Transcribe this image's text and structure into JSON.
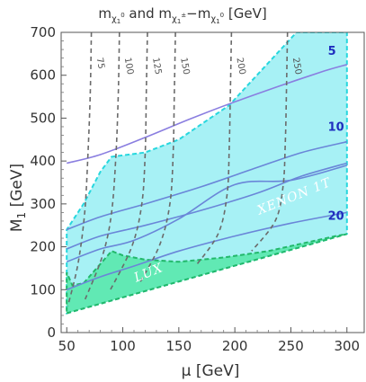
{
  "chart_data": {
    "type": "area",
    "title": "m_{χ1^0} and m_{χ1^±}−m_{χ1^0} [GeV]",
    "title_parts": {
      "m1": "m",
      "m1_sub": "χ",
      "m1_subsub": "0",
      "m1_subsub_low": "1",
      "and": " and ",
      "m2": "m",
      "m2_sub": "χ",
      "m2_subsup": "±",
      "m2_subsub": "1",
      "minus": "−",
      "m3": "m",
      "m3_sub": "χ",
      "m3_subsup": "0",
      "m3_subsub": "1",
      "unit": " [GeV]"
    },
    "xlabel": "μ [GeV]",
    "ylabel": "M₁ [GeV]",
    "ylabel_parts": {
      "main": "M",
      "sub": "1",
      "unit": " [GeV]"
    },
    "xlim": [
      45,
      305
    ],
    "ylim": [
      0,
      700
    ],
    "x_ticks": [
      50,
      100,
      150,
      200,
      250,
      300
    ],
    "y_ticks": [
      0,
      100,
      200,
      300,
      400,
      500,
      600,
      700
    ],
    "grid": false,
    "colors": {
      "xenon_fill": "#a7f1f5",
      "xenon_edge": "#27d7de",
      "lux_fill": "#55e8a8",
      "lux_edge": "#22b86a",
      "neutralino_contour": "#6b6b6b",
      "splitting_contour": "#6a86d8",
      "splitting_top": "#8a7ee0",
      "mass_label": "#1f2fbf"
    },
    "regions": [
      {
        "name": "XENON 1T",
        "boundary": [
          [
            50,
            45
          ],
          [
            300,
            230
          ],
          [
            300,
            700
          ],
          [
            255,
            700
          ],
          [
            195,
            530
          ],
          [
            150,
            450
          ],
          [
            120,
            420
          ],
          [
            90,
            410
          ],
          [
            80,
            375
          ],
          [
            65,
            300
          ],
          [
            50,
            240
          ]
        ]
      },
      {
        "name": "LUX",
        "boundary": [
          [
            50,
            45
          ],
          [
            300,
            230
          ],
          [
            290,
            225
          ],
          [
            230,
            190
          ],
          [
            190,
            175
          ],
          [
            150,
            165
          ],
          [
            120,
            170
          ],
          [
            100,
            180
          ],
          [
            90,
            190
          ],
          [
            80,
            160
          ],
          [
            65,
            115
          ],
          [
            55,
            110
          ],
          [
            50,
            140
          ]
        ]
      }
    ],
    "neutralino_mass_contours": [
      {
        "label": "75",
        "points": [
          [
            72,
            700
          ],
          [
            71,
            560
          ],
          [
            69,
            420
          ],
          [
            66,
            280
          ],
          [
            60,
            160
          ],
          [
            51,
            62
          ]
        ]
      },
      {
        "label": "100",
        "points": [
          [
            97,
            700
          ],
          [
            96,
            560
          ],
          [
            94,
            420
          ],
          [
            90,
            280
          ],
          [
            82,
            180
          ],
          [
            66,
            75
          ]
        ]
      },
      {
        "label": "125",
        "points": [
          [
            122,
            700
          ],
          [
            121,
            560
          ],
          [
            120,
            420
          ],
          [
            117,
            300
          ],
          [
            108,
            200
          ],
          [
            88,
            95
          ]
        ]
      },
      {
        "label": "150",
        "points": [
          [
            147,
            700
          ],
          [
            146,
            560
          ],
          [
            145,
            420
          ],
          [
            142,
            300
          ],
          [
            133,
            205
          ],
          [
            115,
            115
          ]
        ]
      },
      {
        "label": "200",
        "points": [
          [
            197,
            700
          ],
          [
            196,
            560
          ],
          [
            195,
            430
          ],
          [
            193,
            320
          ],
          [
            185,
            230
          ],
          [
            165,
            155
          ]
        ]
      },
      {
        "label": "250",
        "points": [
          [
            247,
            700
          ],
          [
            246,
            560
          ],
          [
            245,
            440
          ],
          [
            243,
            340
          ],
          [
            236,
            260
          ],
          [
            215,
            190
          ]
        ]
      }
    ],
    "mass_splitting_contours": [
      {
        "label": "5",
        "points": [
          [
            50,
            395
          ],
          [
            80,
            415
          ],
          [
            120,
            455
          ],
          [
            160,
            498
          ],
          [
            200,
            538
          ],
          [
            240,
            575
          ],
          [
            280,
            610
          ],
          [
            300,
            625
          ]
        ]
      },
      {
        "label": "",
        "points": [
          [
            50,
            165
          ],
          [
            80,
            195
          ],
          [
            110,
            215
          ],
          [
            150,
            265
          ],
          [
            200,
            345
          ],
          [
            250,
            355
          ],
          [
            300,
            390
          ]
        ]
      },
      {
        "label": "",
        "points": [
          [
            50,
            195
          ],
          [
            80,
            225
          ],
          [
            120,
            250
          ],
          [
            170,
            285
          ],
          [
            220,
            325
          ],
          [
            260,
            365
          ],
          [
            300,
            395
          ]
        ]
      },
      {
        "label": "10",
        "points": [
          [
            50,
            240
          ],
          [
            80,
            270
          ],
          [
            120,
            300
          ],
          [
            170,
            340
          ],
          [
            220,
            385
          ],
          [
            260,
            420
          ],
          [
            300,
            445
          ]
        ]
      },
      {
        "label": "20",
        "points": [
          [
            50,
            100
          ],
          [
            80,
            130
          ],
          [
            110,
            155
          ],
          [
            150,
            190
          ],
          [
            200,
            225
          ],
          [
            250,
            255
          ],
          [
            300,
            280
          ]
        ]
      }
    ],
    "annotations": [
      {
        "text": "5",
        "x": 283,
        "y": 648
      },
      {
        "text": "10",
        "x": 283,
        "y": 470
      },
      {
        "text": "20",
        "x": 283,
        "y": 263
      },
      {
        "text": "XENON 1T",
        "x": 222,
        "y": 275
      },
      {
        "text": "LUX",
        "x": 112,
        "y": 118
      }
    ]
  }
}
